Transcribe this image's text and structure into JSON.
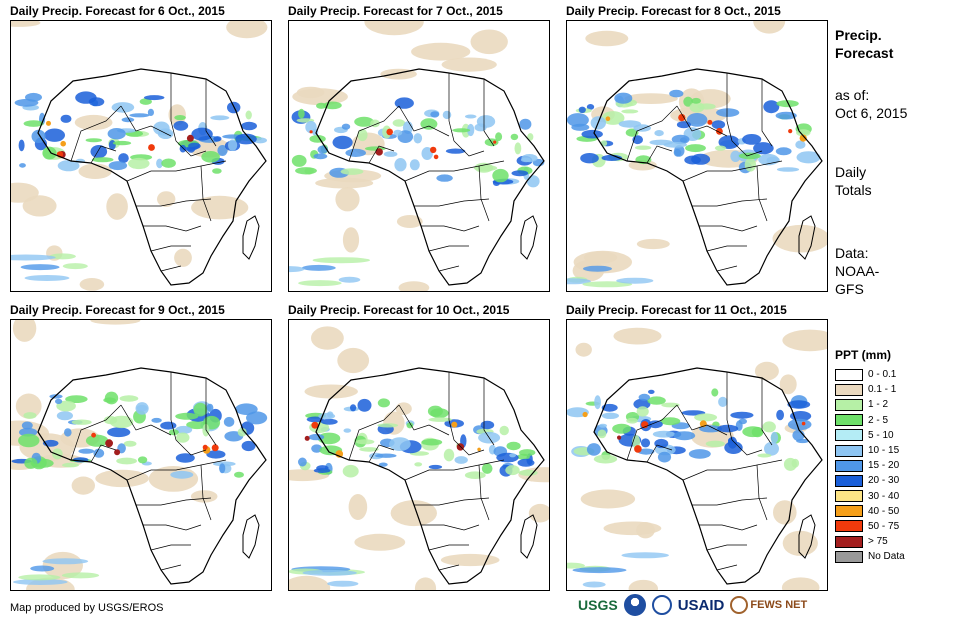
{
  "panels": [
    {
      "title": "Daily Precip. Forecast for 6 Oct., 2015"
    },
    {
      "title": "Daily Precip. Forecast for 7 Oct., 2015"
    },
    {
      "title": "Daily Precip. Forecast for 8 Oct., 2015"
    },
    {
      "title": "Daily Precip. Forecast for 9 Oct., 2015"
    },
    {
      "title": "Daily Precip. Forecast for 10 Oct., 2015"
    },
    {
      "title": "Daily Precip. Forecast for 11 Oct., 2015"
    }
  ],
  "side": {
    "heading_line1": "Precip.",
    "heading_line2": "Forecast",
    "asof_line1": "as of:",
    "asof_line2": "Oct 6, 2015",
    "totals_line1": "Daily",
    "totals_line2": "Totals",
    "data_line1": "Data:",
    "data_line2": "NOAA-",
    "data_line3": "GFS"
  },
  "legend": {
    "title": "PPT (mm)",
    "items": [
      {
        "label": "0 - 0.1",
        "color": "#ffffff"
      },
      {
        "label": "0.1 - 1",
        "color": "#ead9bf"
      },
      {
        "label": "1 - 2",
        "color": "#b6f0a6"
      },
      {
        "label": "2 - 5",
        "color": "#6ee06a"
      },
      {
        "label": "5 - 10",
        "color": "#b4ecf5"
      },
      {
        "label": "10 - 15",
        "color": "#8ec5f2"
      },
      {
        "label": "15 - 20",
        "color": "#4f97e8"
      },
      {
        "label": "20 - 30",
        "color": "#1a5fd9"
      },
      {
        "label": "30 - 40",
        "color": "#fde486"
      },
      {
        "label": "40 - 50",
        "color": "#f59f1a"
      },
      {
        "label": "50 - 75",
        "color": "#f03a0c"
      },
      {
        "label": "> 75",
        "color": "#a31e1e"
      },
      {
        "label": "No Data",
        "color": "#999999"
      }
    ]
  },
  "credit": "Map produced by USGS/EROS",
  "logos": {
    "usgs": "USGS",
    "usaid": "USAID",
    "fews": "FEWS NET"
  }
}
